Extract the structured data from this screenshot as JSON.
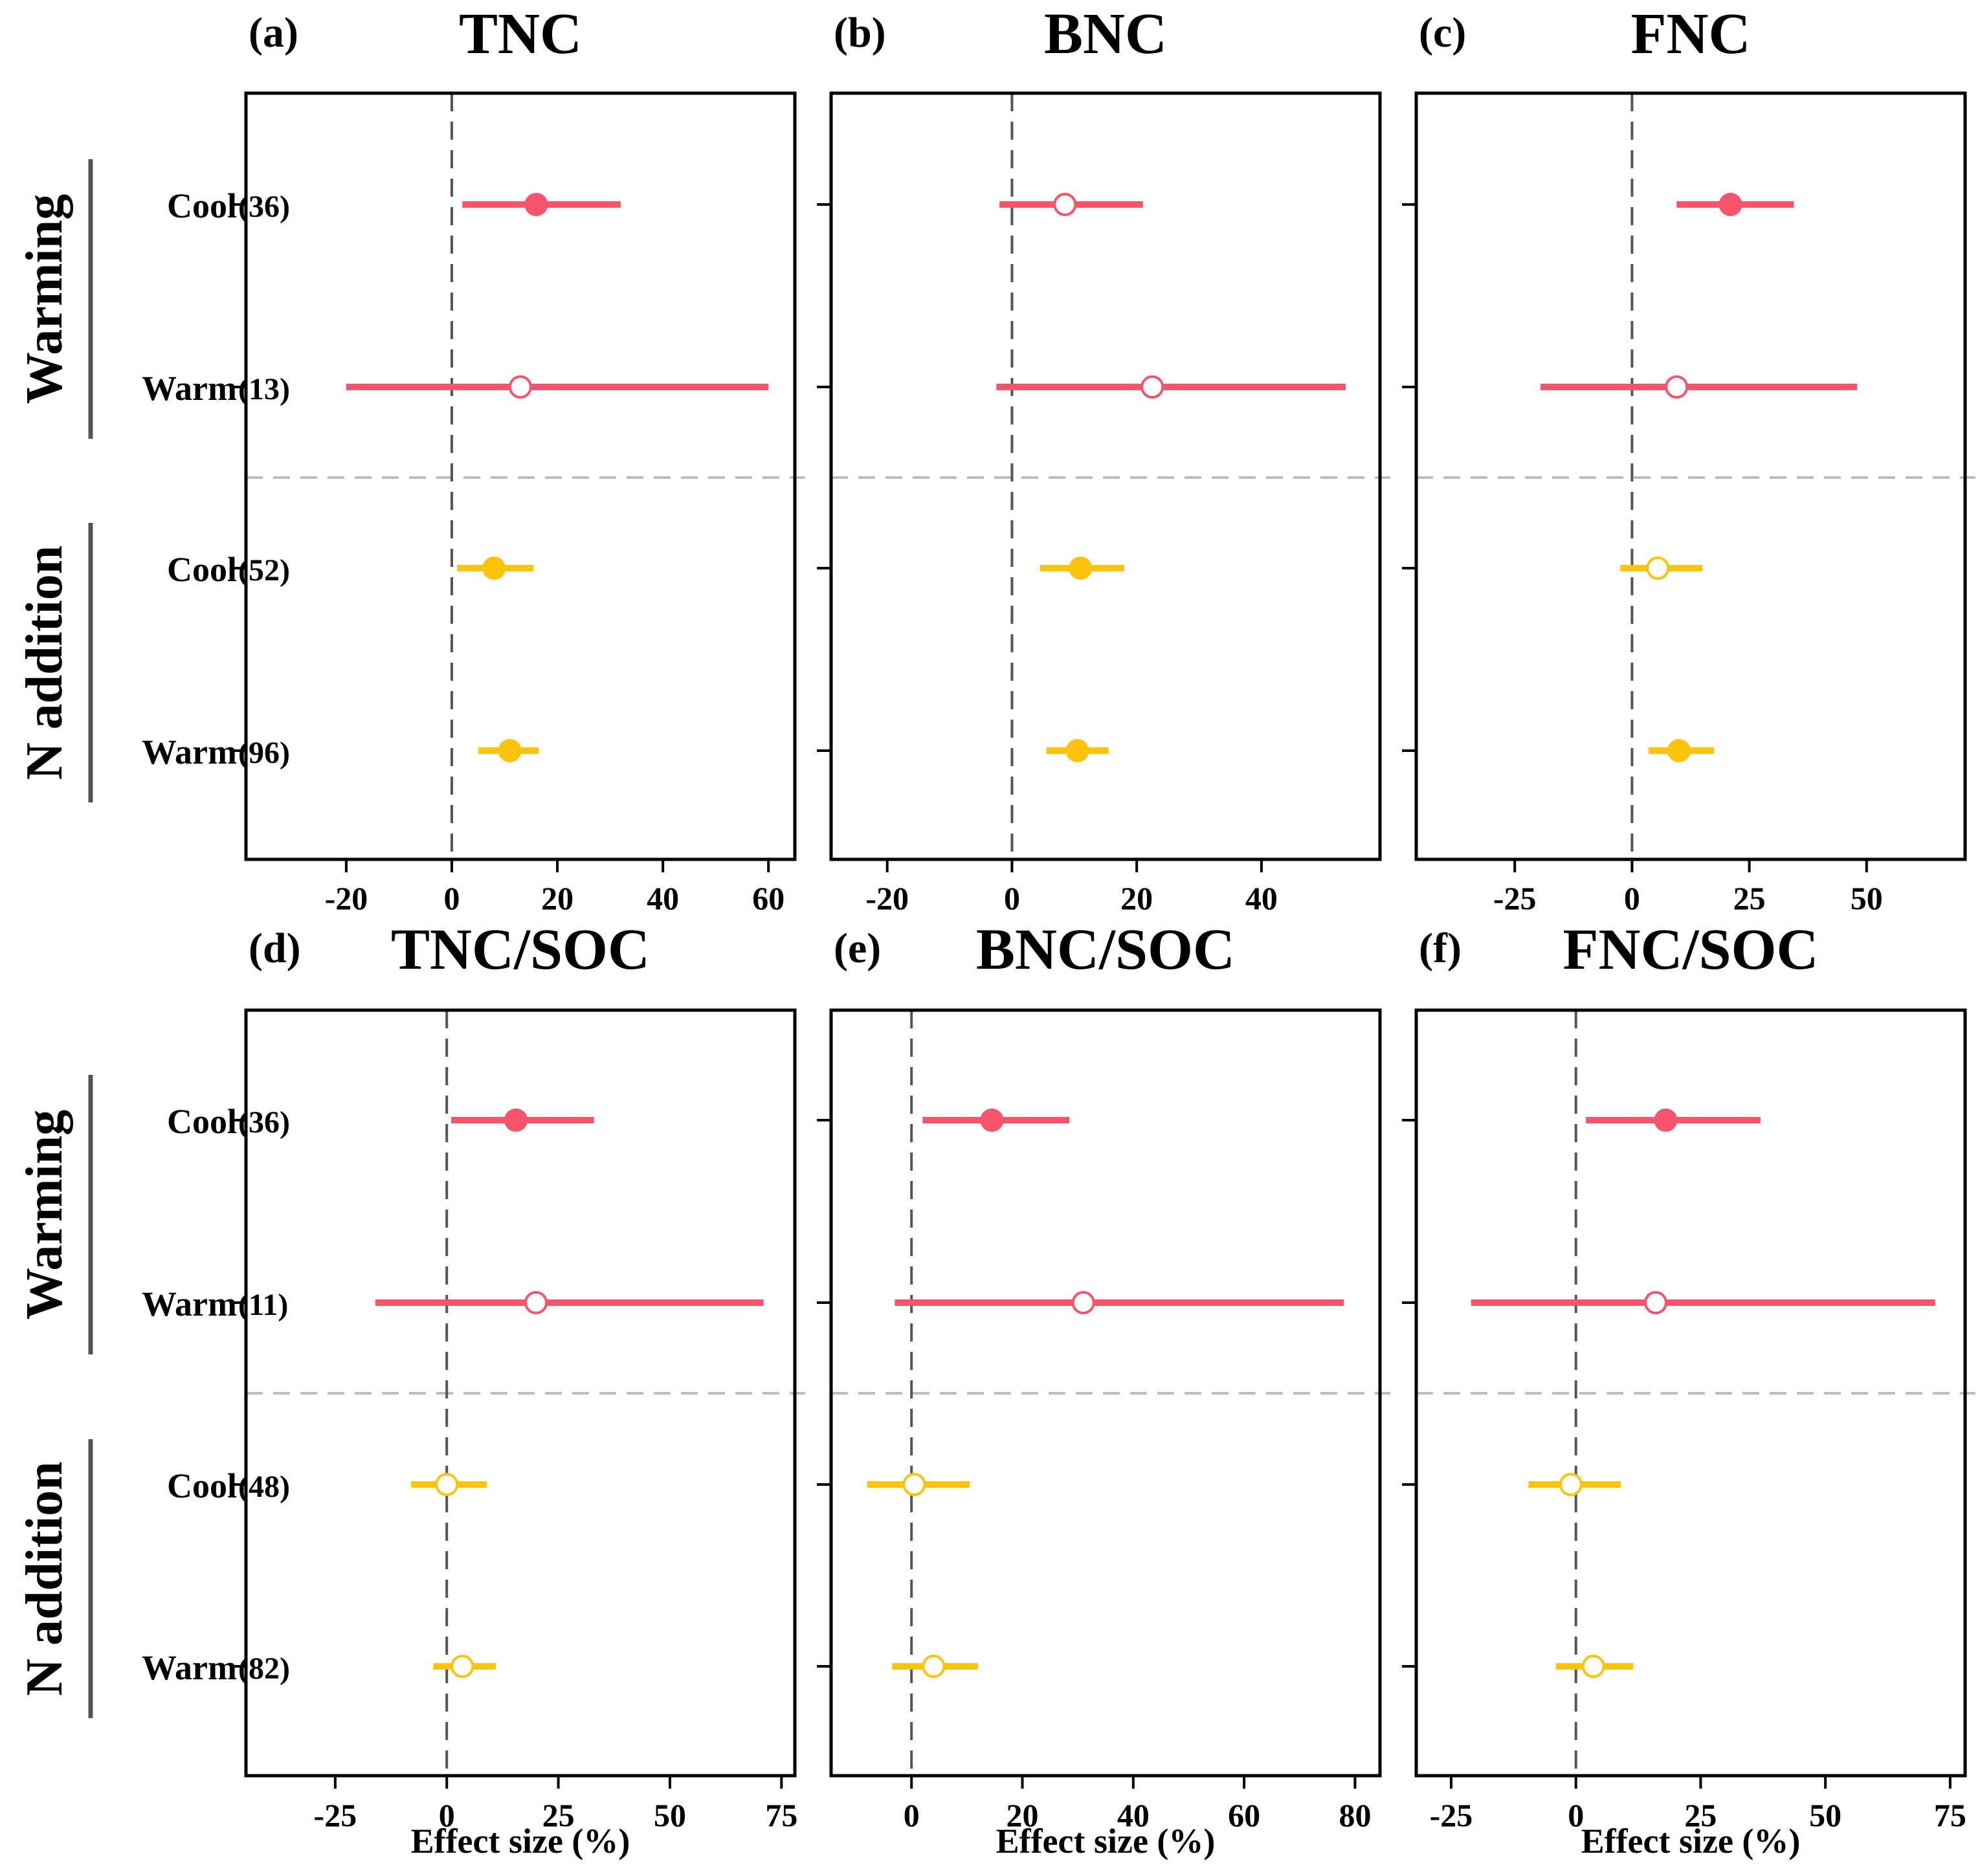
{
  "figure": {
    "group_labels": [
      "Warming",
      "N addition"
    ],
    "row_labels": [
      "Cool",
      "Warm",
      "Cool",
      "Warm"
    ],
    "xlabel": "Effect size (%)",
    "colors": {
      "warming": "#f4546c",
      "n_addition": "#fcc40c"
    }
  },
  "chart_data": [
    {
      "type": "forest",
      "panel_label": "(a)",
      "title": "TNC",
      "xlim": [
        -39,
        65
      ],
      "xticks": [
        -20,
        0,
        20,
        40,
        60
      ],
      "tick_labels": [
        "-20",
        "0",
        "20",
        "40",
        "60"
      ],
      "rows": [
        {
          "group": "Warming",
          "category": "Cool",
          "n": "(36)",
          "mean": 16,
          "lower": 2,
          "upper": 32,
          "significant": true
        },
        {
          "group": "Warming",
          "category": "Warm",
          "n": "(13)",
          "mean": 13,
          "lower": -20,
          "upper": 60,
          "significant": false
        },
        {
          "group": "N addition",
          "category": "Cool",
          "n": "(52)",
          "mean": 8,
          "lower": 1,
          "upper": 15.5,
          "significant": true
        },
        {
          "group": "N addition",
          "category": "Warm",
          "n": "(96)",
          "mean": 11,
          "lower": 5,
          "upper": 16.5,
          "significant": true
        }
      ]
    },
    {
      "type": "forest",
      "panel_label": "(b)",
      "title": "BNC",
      "xlim": [
        -29,
        59
      ],
      "xticks": [
        -20,
        0,
        20,
        40
      ],
      "tick_labels": [
        "-20",
        "0",
        "20",
        "40"
      ],
      "rows": [
        {
          "group": "Warming",
          "category": "Cool",
          "n": "",
          "mean": 8.5,
          "lower": -2,
          "upper": 21,
          "significant": false
        },
        {
          "group": "Warming",
          "category": "Warm",
          "n": "",
          "mean": 22.5,
          "lower": -2.5,
          "upper": 53.5,
          "significant": false
        },
        {
          "group": "N addition",
          "category": "Cool",
          "n": "",
          "mean": 11,
          "lower": 4.5,
          "upper": 18,
          "significant": true
        },
        {
          "group": "N addition",
          "category": "Warm",
          "n": "",
          "mean": 10.5,
          "lower": 5.5,
          "upper": 15.5,
          "significant": true
        }
      ]
    },
    {
      "type": "forest",
      "panel_label": "(c)",
      "title": "FNC",
      "xlim": [
        -46,
        71
      ],
      "xticks": [
        -25,
        0,
        25,
        50
      ],
      "tick_labels": [
        "-25",
        "0",
        "25",
        "50"
      ],
      "rows": [
        {
          "group": "Warming",
          "category": "Cool",
          "n": "",
          "mean": 21,
          "lower": 9.5,
          "upper": 34.5,
          "significant": true
        },
        {
          "group": "Warming",
          "category": "Warm",
          "n": "",
          "mean": 9.5,
          "lower": -19.5,
          "upper": 48,
          "significant": false
        },
        {
          "group": "N addition",
          "category": "Cool",
          "n": "",
          "mean": 5.5,
          "lower": -2.5,
          "upper": 15,
          "significant": false
        },
        {
          "group": "N addition",
          "category": "Warm",
          "n": "",
          "mean": 10,
          "lower": 3.5,
          "upper": 17.5,
          "significant": true
        }
      ]
    },
    {
      "type": "forest",
      "panel_label": "(d)",
      "title": "TNC/SOC",
      "xlim": [
        -45,
        78
      ],
      "xticks": [
        -25,
        0,
        25,
        50,
        75
      ],
      "tick_labels": [
        "-25",
        "0",
        "25",
        "50",
        "75"
      ],
      "rows": [
        {
          "group": "Warming",
          "category": "Cool",
          "n": "(36)",
          "mean": 15.5,
          "lower": 1,
          "upper": 33,
          "significant": true
        },
        {
          "group": "Warming",
          "category": "Warm",
          "n": "(11)",
          "mean": 20,
          "lower": -16,
          "upper": 71,
          "significant": false
        },
        {
          "group": "N addition",
          "category": "Cool",
          "n": "(48)",
          "mean": 0,
          "lower": -8,
          "upper": 9,
          "significant": false
        },
        {
          "group": "N addition",
          "category": "Warm",
          "n": "(82)",
          "mean": 3.5,
          "lower": -3,
          "upper": 11,
          "significant": false
        }
      ]
    },
    {
      "type": "forest",
      "panel_label": "(e)",
      "title": "BNC/SOC",
      "xlim": [
        -14.5,
        84.5
      ],
      "xticks": [
        0,
        20,
        40,
        60,
        80
      ],
      "tick_labels": [
        "0",
        "20",
        "40",
        "60",
        "80"
      ],
      "rows": [
        {
          "group": "Warming",
          "category": "Cool",
          "n": "",
          "mean": 14.5,
          "lower": 2,
          "upper": 28.5,
          "significant": true
        },
        {
          "group": "Warming",
          "category": "Warm",
          "n": "",
          "mean": 31,
          "lower": -3,
          "upper": 78,
          "significant": false
        },
        {
          "group": "N addition",
          "category": "Cool",
          "n": "",
          "mean": 0.5,
          "lower": -8,
          "upper": 10.5,
          "significant": false
        },
        {
          "group": "N addition",
          "category": "Warm",
          "n": "",
          "mean": 4,
          "lower": -3.5,
          "upper": 12,
          "significant": false
        }
      ]
    },
    {
      "type": "forest",
      "panel_label": "(f)",
      "title": "FNC/SOC",
      "xlim": [
        -32,
        78
      ],
      "xticks": [
        -25,
        0,
        25,
        50,
        75
      ],
      "tick_labels": [
        "-25",
        "0",
        "25",
        "50",
        "75"
      ],
      "rows": [
        {
          "group": "Warming",
          "category": "Cool",
          "n": "",
          "mean": 18,
          "lower": 2,
          "upper": 37,
          "significant": true
        },
        {
          "group": "Warming",
          "category": "Warm",
          "n": "",
          "mean": 16,
          "lower": -21,
          "upper": 72,
          "significant": false
        },
        {
          "group": "N addition",
          "category": "Cool",
          "n": "",
          "mean": -1,
          "lower": -9.5,
          "upper": 9,
          "significant": false
        },
        {
          "group": "N addition",
          "category": "Warm",
          "n": "",
          "mean": 3.5,
          "lower": -4,
          "upper": 11.5,
          "significant": false
        }
      ]
    }
  ]
}
